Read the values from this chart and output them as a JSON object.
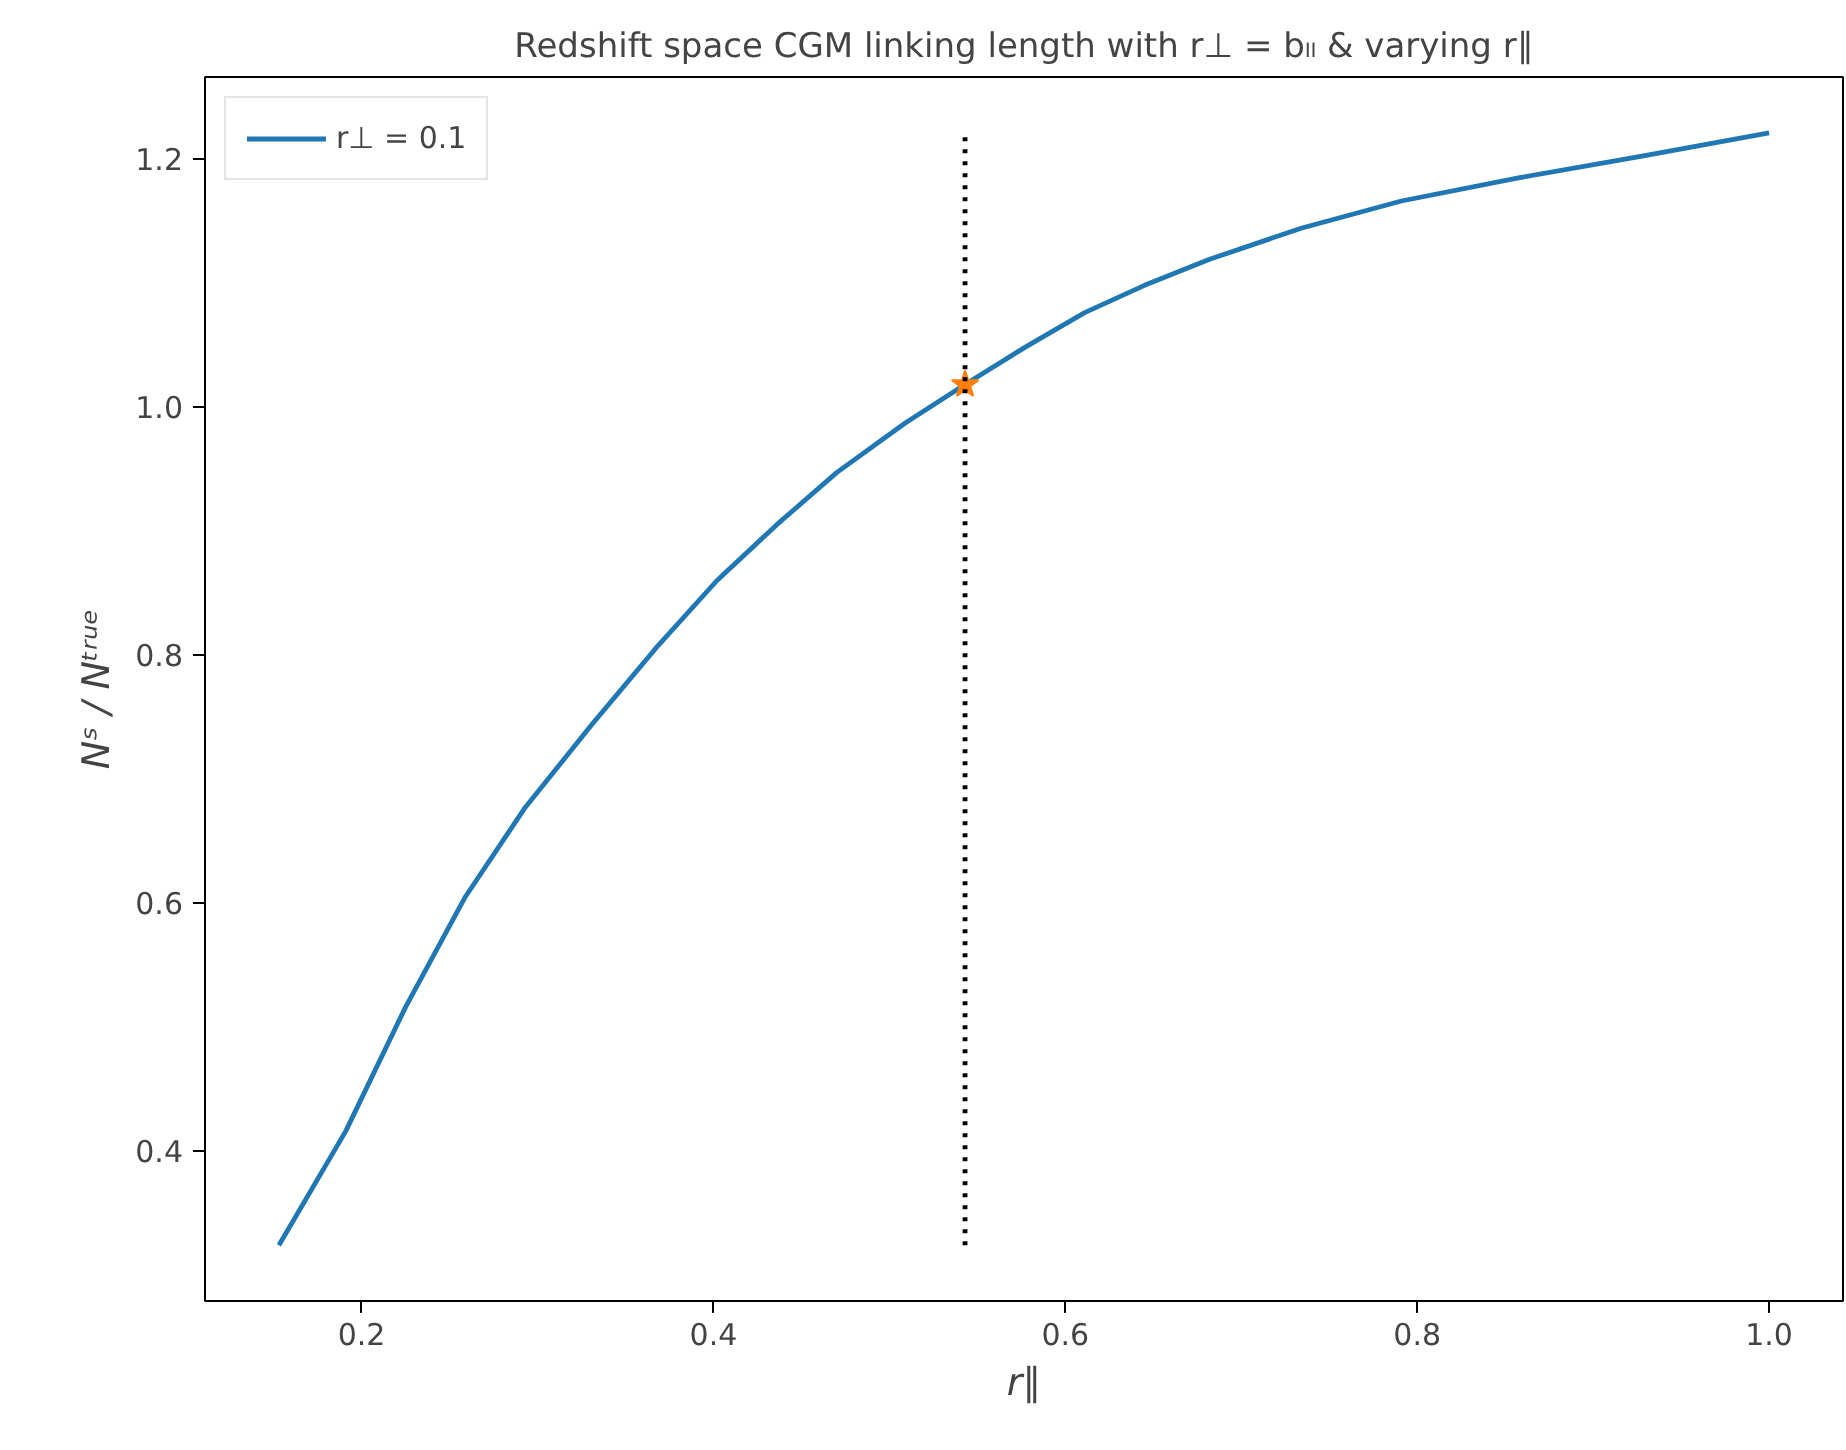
{
  "chart_data": {
    "type": "line",
    "title": "Redshift space CGM linking length with r⊥ = bₗₗ & varying r∥",
    "xlabel": "r∥",
    "ylabel": "Nˢ / Nᵗʳᵘᵉ",
    "x": [
      0.153,
      0.191,
      0.225,
      0.259,
      0.293,
      0.331,
      0.367,
      0.402,
      0.436,
      0.47,
      0.509,
      0.543,
      0.577,
      0.611,
      0.645,
      0.682,
      0.734,
      0.791,
      0.859,
      0.927,
      1.0
    ],
    "series": [
      {
        "name": "r⊥ = 0.1",
        "color": "#1f77b4",
        "values": [
          0.324,
          0.416,
          0.516,
          0.605,
          0.677,
          0.744,
          0.805,
          0.86,
          0.905,
          0.947,
          0.987,
          1.018,
          1.048,
          1.076,
          1.098,
          1.119,
          1.144,
          1.166,
          1.185,
          1.202,
          1.221
        ]
      },
      {
        "type": "scatter",
        "color": "#ff7f0e",
        "marker": "star",
        "x": [
          0.543
        ],
        "values": [
          1.018
        ]
      }
    ],
    "xlim": [
      0.111,
      1.042
    ],
    "ylim": [
      0.279,
      1.266
    ],
    "xticks": [
      {
        "value": 0.2,
        "label": "0.2"
      },
      {
        "value": 0.4,
        "label": "0.4"
      },
      {
        "value": 0.6,
        "label": "0.6"
      },
      {
        "value": 0.8,
        "label": "0.8"
      },
      {
        "value": 1.0,
        "label": "1.0"
      }
    ],
    "yticks": [
      {
        "value": 0.4,
        "label": "0.4"
      },
      {
        "value": 0.6,
        "label": "0.6"
      },
      {
        "value": 0.8,
        "label": "0.8"
      },
      {
        "value": 1.0,
        "label": "1.0"
      },
      {
        "value": 1.2,
        "label": "1.2"
      }
    ],
    "ref_lines": [
      {
        "axis": "x",
        "value": 0.543,
        "color": "#000000",
        "line_style": "dotted"
      }
    ],
    "grid": false,
    "legend": "top left",
    "line_style": "solid",
    "marker": "none"
  }
}
